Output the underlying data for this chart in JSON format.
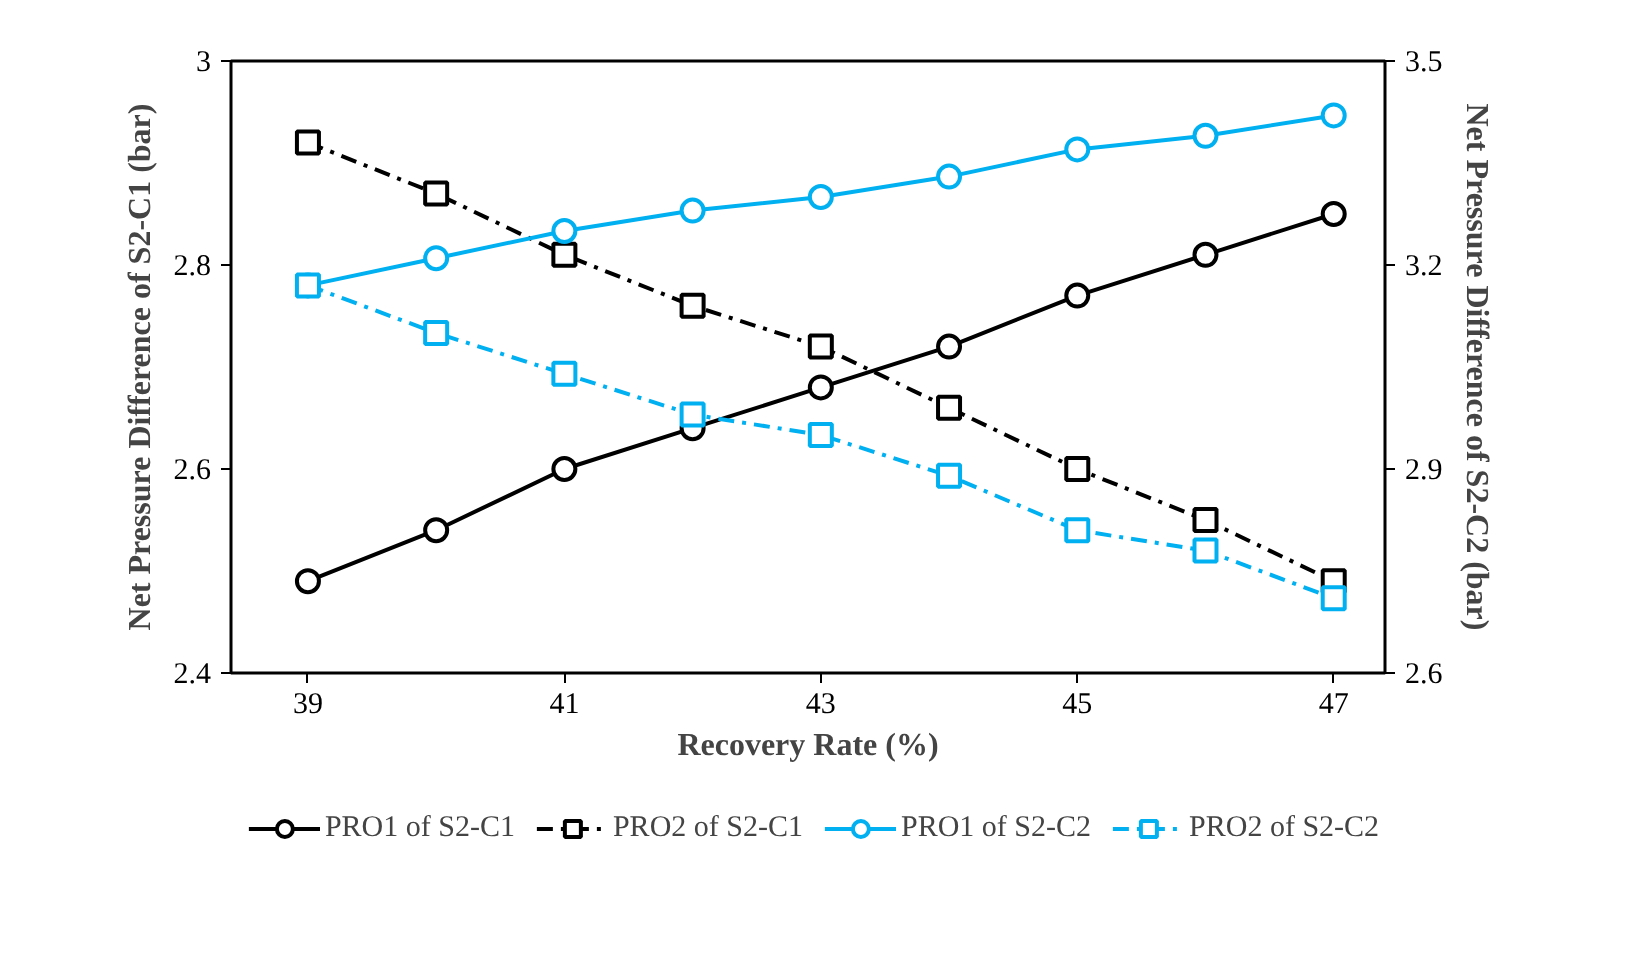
{
  "chart_data": {
    "type": "line",
    "xlabel": "Recovery Rate (%)",
    "ylabel": "Net Pressure Difference of S2-C1 (bar)",
    "y2label": "Net Pressure Difference of S2-C2 (bar)",
    "x": [
      39,
      40,
      41,
      42,
      43,
      44,
      45,
      46,
      47
    ],
    "xlim": [
      38.4,
      47.4
    ],
    "xticks": [
      39,
      41,
      43,
      45,
      47
    ],
    "ylim": [
      2.4,
      3.0
    ],
    "yticks": [
      2.4,
      2.6,
      2.8,
      {
        "value": 3.0,
        "label": "3"
      }
    ],
    "y2lim": [
      2.6,
      3.5
    ],
    "y2ticks": [
      2.6,
      2.9,
      3.2,
      3.5
    ],
    "grid": false,
    "legend": "bottom",
    "series": [
      {
        "name": "PRO1 of S2-C1",
        "color": "#000000",
        "marker": "circle",
        "line_style": "solid",
        "values": [
          2.49,
          2.54,
          2.6,
          2.64,
          2.68,
          2.72,
          2.77,
          2.81,
          2.85
        ]
      },
      {
        "name": "PRO2 of S2-C1",
        "color": "#000000",
        "marker": "square",
        "line_style": "dashdot",
        "values": [
          2.92,
          2.87,
          2.81,
          2.76,
          2.72,
          2.66,
          2.6,
          2.55,
          2.49
        ]
      },
      {
        "name": "PRO1 of S2-C2",
        "color": "#00b0f0",
        "marker": "circle",
        "line_style": "solid",
        "axis": "y2",
        "values": [
          3.17,
          3.21,
          3.25,
          3.28,
          3.3,
          3.33,
          3.37,
          3.39,
          3.42
        ]
      },
      {
        "name": "PRO2 of S2-C2",
        "color": "#00b0f0",
        "marker": "square",
        "line_style": "dashdot",
        "axis": "y2",
        "values": [
          3.17,
          3.1,
          3.04,
          2.98,
          2.95,
          2.89,
          2.81,
          2.78,
          2.71
        ]
      }
    ]
  }
}
